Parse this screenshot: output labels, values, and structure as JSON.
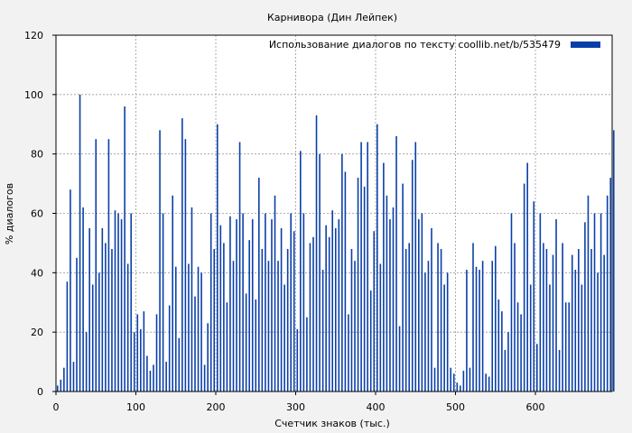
{
  "chart_data": {
    "type": "bar",
    "title": "Карнивора (Дин Лейпек)",
    "xlabel": "Счетчик знаков (тыс.)",
    "ylabel": "% диалогов",
    "xlim": [
      0,
      696
    ],
    "ylim": [
      0,
      120
    ],
    "xticks": [
      0,
      100,
      200,
      300,
      400,
      500,
      600
    ],
    "yticks": [
      0,
      20,
      40,
      60,
      80,
      100,
      120
    ],
    "grid": true,
    "legend_position": "top-right",
    "series": [
      {
        "name": "Использование диалогов по тексту  coollib.net/b/535479",
        "color": "#0a3fa8",
        "x": [
          0,
          4,
          8,
          12,
          16,
          20,
          24,
          28,
          32,
          36,
          40,
          44,
          48,
          52,
          56,
          60,
          64,
          68,
          72,
          76,
          80,
          84,
          88,
          92,
          96,
          100,
          104,
          108,
          112,
          116,
          120,
          124,
          128,
          132,
          136,
          140,
          144,
          148,
          152,
          156,
          160,
          164,
          168,
          172,
          176,
          180,
          184,
          188,
          192,
          196,
          200,
          204,
          208,
          212,
          216,
          220,
          224,
          228,
          232,
          236,
          240,
          244,
          248,
          252,
          256,
          260,
          264,
          268,
          272,
          276,
          280,
          284,
          288,
          292,
          296,
          300,
          304,
          308,
          312,
          316,
          320,
          324,
          328,
          332,
          336,
          340,
          344,
          348,
          352,
          356,
          360,
          364,
          368,
          372,
          376,
          380,
          384,
          388,
          392,
          396,
          400,
          404,
          408,
          412,
          416,
          420,
          424,
          428,
          432,
          436,
          440,
          444,
          448,
          452,
          456,
          460,
          464,
          468,
          472,
          476,
          480,
          484,
          488,
          492,
          496,
          500,
          504,
          508,
          512,
          516,
          520,
          524,
          528,
          532,
          536,
          540,
          544,
          548,
          552,
          556,
          560,
          564,
          568,
          572,
          576,
          580,
          584,
          588,
          592,
          596,
          600,
          604,
          608,
          612,
          616,
          620,
          624,
          628,
          632,
          636,
          640,
          644,
          648,
          652,
          656,
          660,
          664,
          668,
          672,
          676,
          680,
          684,
          688,
          692,
          696
        ],
        "values": [
          2,
          4,
          8,
          37,
          68,
          10,
          45,
          100,
          62,
          20,
          55,
          36,
          85,
          40,
          55,
          50,
          85,
          48,
          61,
          60,
          58,
          96,
          43,
          60,
          20,
          26,
          21,
          27,
          12,
          7,
          9,
          26,
          88,
          60,
          10,
          29,
          66,
          42,
          18,
          92,
          85,
          43,
          62,
          32,
          42,
          40,
          9,
          23,
          60,
          48,
          90,
          56,
          50,
          30,
          59,
          44,
          58,
          84,
          60,
          33,
          51,
          58,
          31,
          72,
          48,
          60,
          44,
          58,
          66,
          44,
          55,
          36,
          48,
          60,
          54,
          21,
          81,
          60,
          25,
          50,
          52,
          93,
          80,
          41,
          56,
          52,
          61,
          55,
          58,
          80,
          74,
          26,
          48,
          44,
          72,
          84,
          69,
          84,
          34,
          54,
          90,
          43,
          77,
          66,
          58,
          62,
          86,
          22,
          70,
          48,
          50,
          78,
          84,
          58,
          60,
          40,
          44,
          55,
          8,
          50,
          48,
          36,
          40,
          8,
          6,
          3,
          2,
          7,
          41,
          8,
          50,
          42,
          41,
          44,
          6,
          5,
          44,
          49,
          31,
          27,
          14,
          20,
          60,
          50,
          30,
          26,
          70,
          77,
          36,
          64,
          16,
          60,
          50,
          48,
          36,
          46,
          58,
          14,
          50,
          30,
          30,
          46,
          41,
          48,
          36,
          57,
          66,
          48,
          60,
          40,
          60,
          46,
          66,
          72,
          88
        ]
      }
    ]
  }
}
